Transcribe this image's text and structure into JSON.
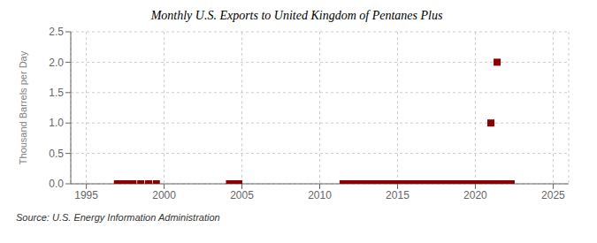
{
  "chart_data": {
    "type": "scatter",
    "title": "Monthly U.S. Exports to United Kingdom of Pentanes Plus",
    "ylabel": "Thousand Barrels per Day",
    "annotations": [
      "Source: U.S. Energy Information Administration"
    ],
    "x": [
      1997.0,
      1997.3,
      1997.6,
      1998.0,
      1998.5,
      1999.0,
      1999.5,
      2004.2,
      2004.5,
      2004.8,
      2011.5,
      2011.8,
      2012.1,
      2012.4,
      2012.7,
      2013.0,
      2013.3,
      2013.6,
      2013.9,
      2014.2,
      2014.5,
      2014.8,
      2015.1,
      2015.4,
      2015.7,
      2016.0,
      2016.3,
      2016.6,
      2016.9,
      2017.2,
      2017.5,
      2017.8,
      2018.1,
      2018.4,
      2018.7,
      2019.0,
      2019.3,
      2019.6,
      2019.9,
      2020.1,
      2020.4,
      2020.6,
      2020.8,
      2021.0,
      2021.2,
      2021.4,
      2021.6,
      2021.8,
      2022.0,
      2022.3
    ],
    "values": [
      0.0,
      0.0,
      0.0,
      0.0,
      0.0,
      0.0,
      0.0,
      0.0,
      0.0,
      0.0,
      0.0,
      0.0,
      0.0,
      0.0,
      0.0,
      0.0,
      0.0,
      0.0,
      0.0,
      0.0,
      0.0,
      0.0,
      0.0,
      0.0,
      0.0,
      0.0,
      0.0,
      0.0,
      0.0,
      0.0,
      0.0,
      0.0,
      0.0,
      0.0,
      0.0,
      0.0,
      0.0,
      0.0,
      0.0,
      0.0,
      0.0,
      0.0,
      0.0,
      1.0,
      0.0,
      2.0,
      0.0,
      0.0,
      0.0,
      0.0
    ],
    "color": "#8b0000",
    "marker": "square",
    "xlim": [
      1994,
      2026
    ],
    "ylim": [
      0,
      2.5
    ],
    "xticks": [
      1995,
      2000,
      2005,
      2010,
      2015,
      2020,
      2025
    ],
    "yticks": [
      {
        "value": 0.0,
        "label": "0.0"
      },
      {
        "value": 0.5,
        "label": "0.5"
      },
      {
        "value": 1.0,
        "label": "1.0"
      },
      {
        "value": 1.5,
        "label": "1.5"
      },
      {
        "value": 2.0,
        "label": "2.0"
      },
      {
        "value": 2.5,
        "label": "2.5"
      }
    ],
    "grid": true
  }
}
